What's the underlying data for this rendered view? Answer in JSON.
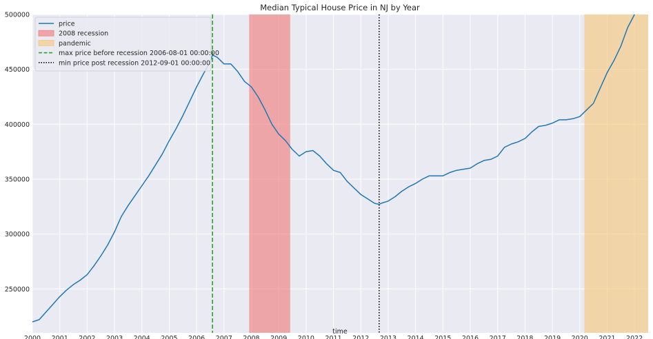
{
  "chart_data": {
    "type": "line",
    "title": "Median Typical House Price in NJ by Year",
    "xlabel": "time",
    "ylabel": "",
    "xlim": [
      2000.0,
      2022.5
    ],
    "ylim": [
      210000,
      500000
    ],
    "x_ticks": [
      "2000",
      "2001",
      "2002",
      "2003",
      "2004",
      "2005",
      "2006",
      "2007",
      "2008",
      "2009",
      "2010",
      "2011",
      "2012",
      "2013",
      "2014",
      "2015",
      "2016",
      "2017",
      "2018",
      "2019",
      "2020",
      "2021",
      "2022"
    ],
    "y_ticks": [
      250000,
      300000,
      350000,
      400000,
      450000,
      500000
    ],
    "grid": true,
    "legend_position": "top-left",
    "series": [
      {
        "name": "price",
        "color": "#1f77b4",
        "x": [
          2000.0,
          2000.25,
          2000.5,
          2000.75,
          2001.0,
          2001.25,
          2001.5,
          2001.75,
          2002.0,
          2002.25,
          2002.5,
          2002.75,
          2003.0,
          2003.25,
          2003.5,
          2003.75,
          2004.0,
          2004.25,
          2004.5,
          2004.75,
          2005.0,
          2005.25,
          2005.5,
          2005.75,
          2006.0,
          2006.25,
          2006.5,
          2006.58,
          2006.75,
          2007.0,
          2007.25,
          2007.5,
          2007.75,
          2008.0,
          2008.25,
          2008.5,
          2008.75,
          2009.0,
          2009.25,
          2009.5,
          2009.75,
          2010.0,
          2010.25,
          2010.5,
          2010.75,
          2011.0,
          2011.25,
          2011.5,
          2011.75,
          2012.0,
          2012.25,
          2012.5,
          2012.67,
          2012.75,
          2013.0,
          2013.25,
          2013.5,
          2013.75,
          2014.0,
          2014.25,
          2014.5,
          2014.75,
          2015.0,
          2015.25,
          2015.5,
          2015.75,
          2016.0,
          2016.25,
          2016.5,
          2016.75,
          2017.0,
          2017.25,
          2017.5,
          2017.75,
          2018.0,
          2018.25,
          2018.5,
          2018.75,
          2019.0,
          2019.25,
          2019.5,
          2019.75,
          2020.0,
          2020.25,
          2020.5,
          2020.75,
          2021.0,
          2021.25,
          2021.5,
          2021.75,
          2022.0
        ],
        "y": [
          220000,
          222000,
          229000,
          236000,
          243000,
          249000,
          254000,
          258000,
          263000,
          271000,
          280000,
          290000,
          302000,
          316000,
          326000,
          335000,
          344000,
          353000,
          363000,
          373000,
          385000,
          396000,
          408000,
          421000,
          434000,
          446000,
          457000,
          463000,
          461000,
          455000,
          455000,
          448000,
          439000,
          434000,
          425000,
          413000,
          400000,
          391000,
          385000,
          377000,
          371000,
          375000,
          376000,
          371000,
          364000,
          358000,
          356000,
          348000,
          342000,
          336000,
          332000,
          328000,
          327000,
          328000,
          330000,
          334000,
          339000,
          343000,
          346000,
          350000,
          353000,
          353000,
          353000,
          356000,
          358000,
          359000,
          360000,
          364000,
          367000,
          368000,
          371000,
          379000,
          382000,
          384000,
          387000,
          393000,
          398000,
          399000,
          401000,
          404000,
          404000,
          405000,
          407000,
          413000,
          419000,
          433000,
          447000,
          458000,
          471000,
          488000,
          500000
        ]
      }
    ],
    "spans": [
      {
        "name": "2008 recession",
        "x0": 2007.92,
        "x1": 2009.42,
        "color": "#f08080"
      },
      {
        "name": "pandemic",
        "x0": 2020.17,
        "x1": 2022.5,
        "color": "#f5c77e"
      }
    ],
    "vlines": [
      {
        "name": "max price before recession 2006-08-01 00:00:00",
        "x": 2006.58,
        "color": "#2ca02c",
        "style": "dashed"
      },
      {
        "name": "min price post recession 2012-09-01 00:00:00",
        "x": 2012.67,
        "color": "#000000",
        "style": "dotted"
      }
    ]
  }
}
